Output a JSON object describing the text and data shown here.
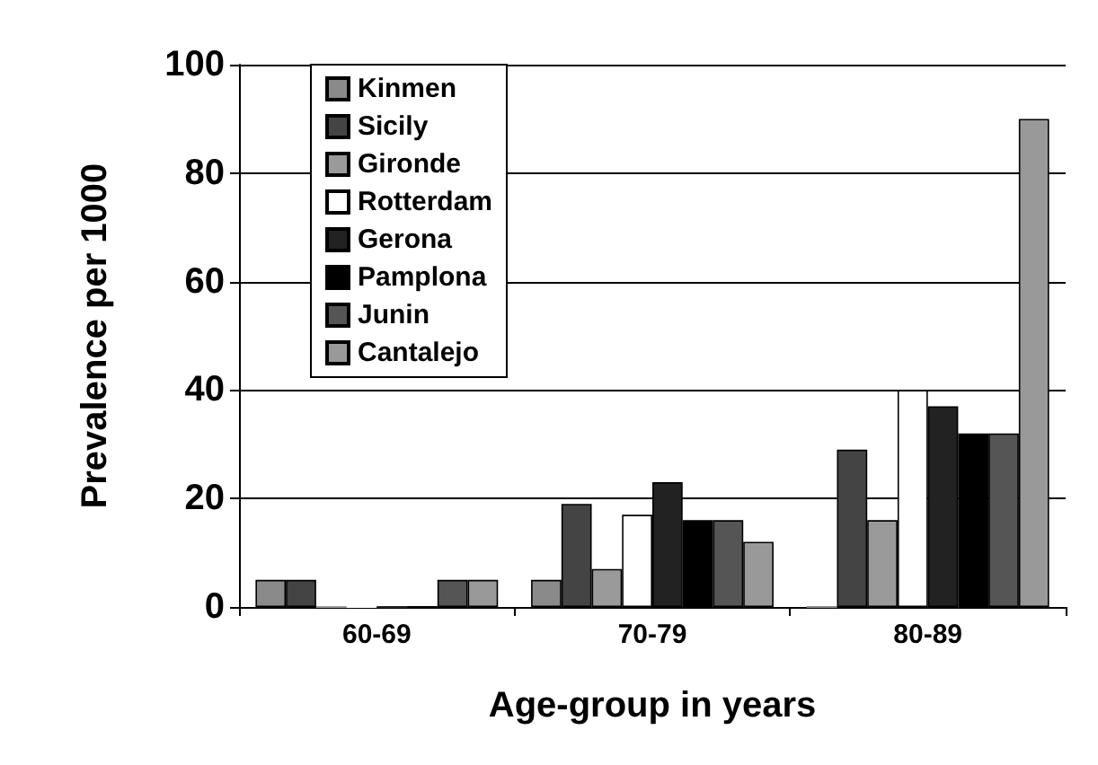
{
  "chart_data": {
    "type": "bar",
    "xlabel": "Age-group in years",
    "ylabel": "Prevalence per 1000",
    "categories": [
      "60-69",
      "70-79",
      "80-89"
    ],
    "series": [
      {
        "name": "Kinmen",
        "color": "#8a8a8a",
        "values": [
          5,
          5,
          0
        ]
      },
      {
        "name": "Sicily",
        "color": "#444444",
        "values": [
          5,
          19,
          29
        ]
      },
      {
        "name": "Gironde",
        "color": "#9a9a9a",
        "values": [
          0,
          7,
          16
        ]
      },
      {
        "name": "Rotterdam",
        "color": "#ffffff",
        "values": [
          0,
          17,
          40
        ]
      },
      {
        "name": "Gerona",
        "color": "#222222",
        "values": [
          0,
          23,
          37
        ]
      },
      {
        "name": "Pamplona",
        "color": "#000000",
        "values": [
          0,
          16,
          32
        ]
      },
      {
        "name": "Junin",
        "color": "#555555",
        "values": [
          5,
          16,
          32
        ]
      },
      {
        "name": "Cantalejo",
        "color": "#999999",
        "values": [
          5,
          12,
          90
        ]
      }
    ],
    "ylim": [
      0,
      100
    ],
    "yticks": [
      0,
      20,
      40,
      60,
      80,
      100
    ],
    "grid": "y",
    "legend": "top left"
  }
}
